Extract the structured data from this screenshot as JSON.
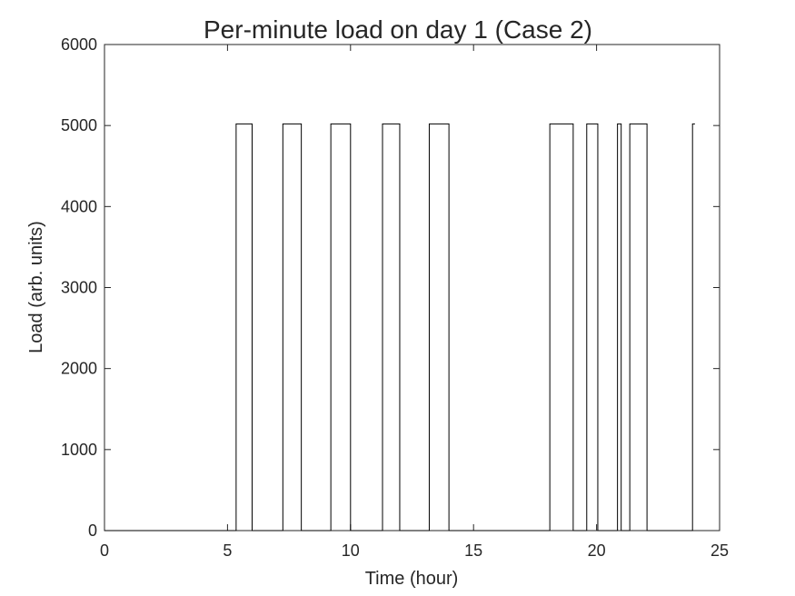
{
  "chart_data": {
    "type": "line",
    "title": "Per-minute load on day 1 (Case 2)",
    "xlabel": "Time (hour)",
    "ylabel": "Load (arb. units)",
    "xlim": [
      0,
      25
    ],
    "ylim": [
      0,
      6000
    ],
    "xticks": [
      0,
      5,
      10,
      15,
      20,
      25
    ],
    "yticks": [
      0,
      1000,
      2000,
      3000,
      4000,
      5000,
      6000
    ],
    "grid": false,
    "step": true,
    "series": [
      {
        "color": "#000000",
        "x": [
          0,
          5.35,
          5.35,
          6.0,
          6.0,
          7.25,
          7.25,
          8.0,
          8.0,
          9.2,
          9.2,
          10.0,
          10.0,
          11.3,
          11.3,
          12.0,
          12.0,
          13.2,
          13.2,
          14.0,
          14.0,
          18.1,
          18.1,
          19.05,
          19.05,
          19.6,
          19.6,
          20.05,
          20.05,
          20.85,
          20.85,
          21.0,
          21.0,
          21.35,
          21.35,
          22.05,
          22.05,
          23.9,
          23.9,
          24.0
        ],
        "y": [
          0,
          0,
          5020,
          5020,
          0,
          0,
          5020,
          5020,
          0,
          0,
          5020,
          5020,
          0,
          0,
          5020,
          5020,
          0,
          0,
          5020,
          5020,
          0,
          0,
          5020,
          5020,
          0,
          0,
          5020,
          5020,
          0,
          0,
          5020,
          5020,
          0,
          0,
          5020,
          5020,
          0,
          0,
          5020,
          5020
        ]
      }
    ]
  }
}
